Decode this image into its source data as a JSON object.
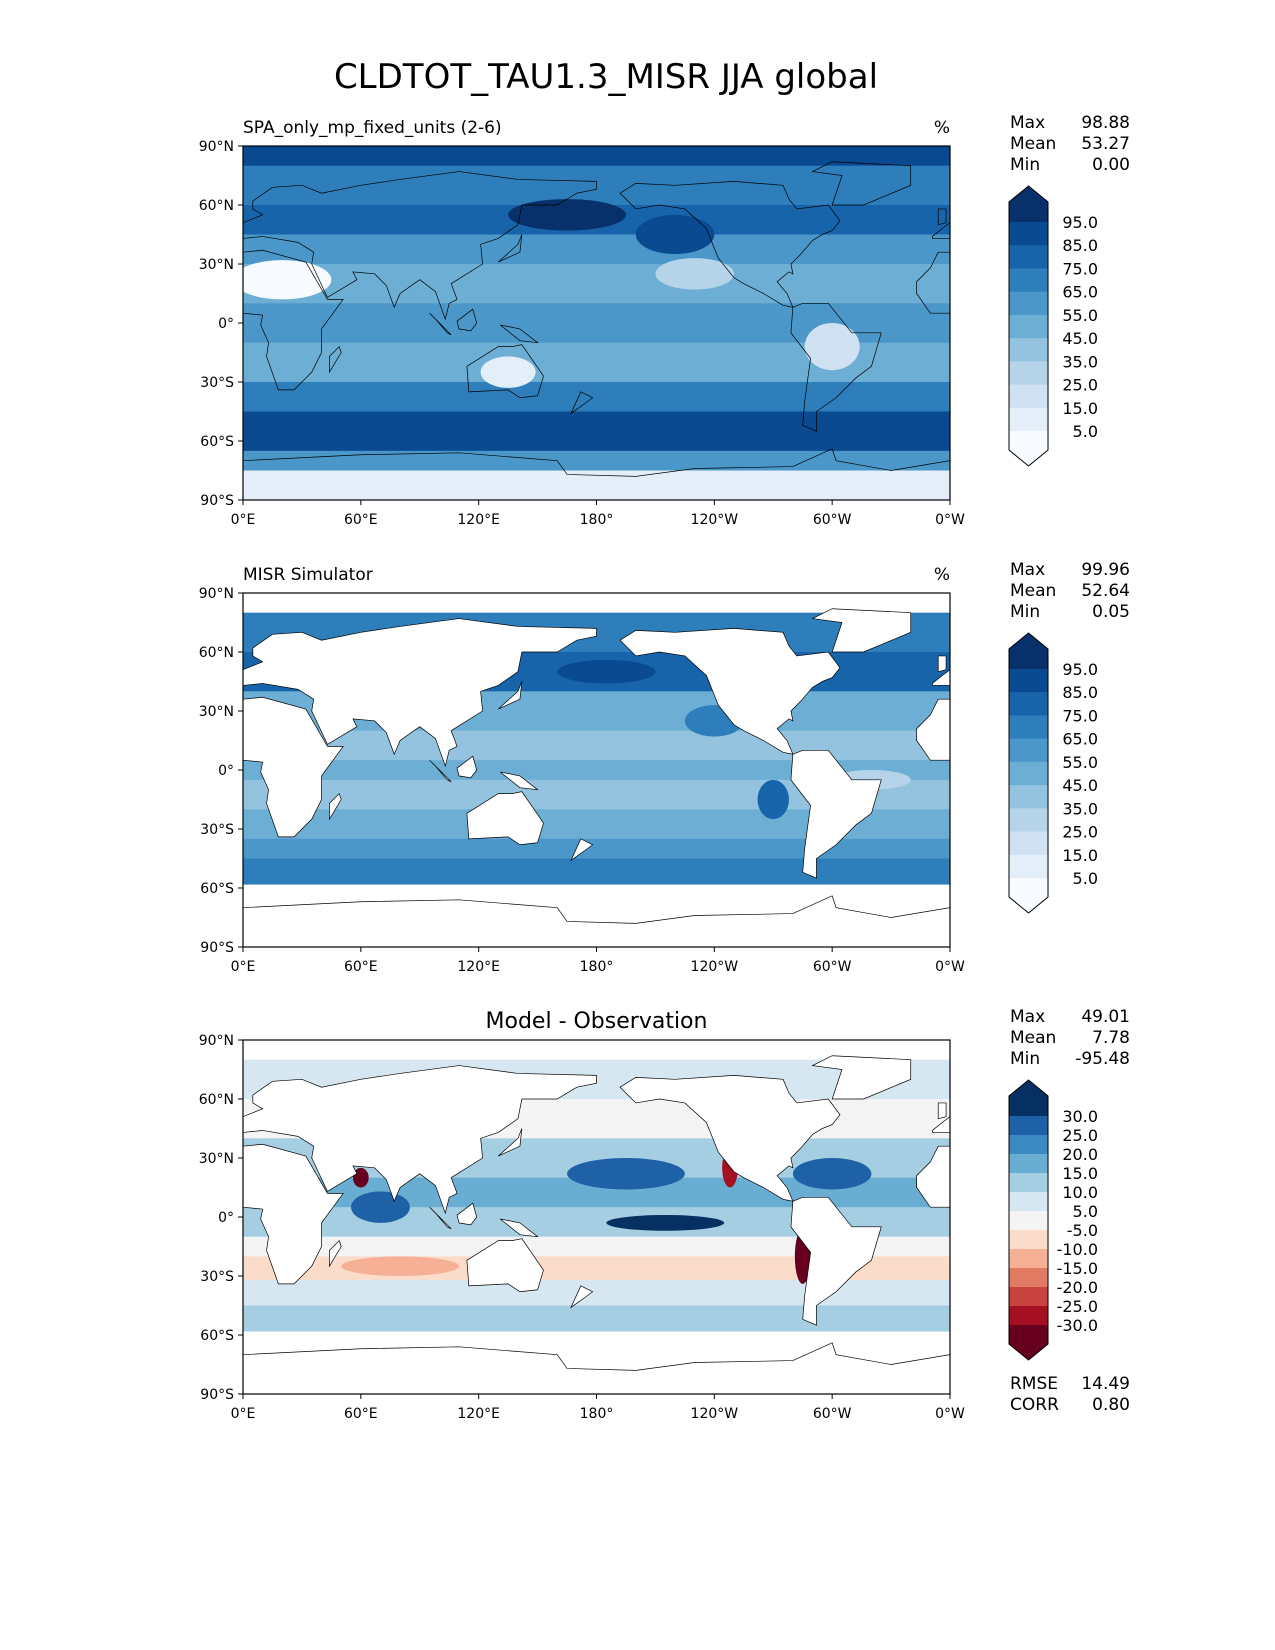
{
  "chart_data": {
    "type": "heatmap",
    "title": "CLDTOT_TAU1.3_MISR JJA global",
    "lat_ticks": [
      "90°N",
      "60°N",
      "30°N",
      "0°",
      "30°S",
      "60°S",
      "90°S"
    ],
    "lon_ticks": [
      "0°E",
      "60°E",
      "120°E",
      "180°",
      "120°W",
      "60°W",
      "0°W"
    ],
    "panels": [
      {
        "title": "SPA_only_mp_fixed_units (2-6)",
        "units": "%",
        "stats": {
          "max_label": "Max",
          "max": "98.88",
          "mean_label": "Mean",
          "mean": "53.27",
          "min_label": "Min",
          "min": "0.00"
        },
        "colorbar_ticks": [
          "95.0",
          "85.0",
          "75.0",
          "65.0",
          "55.0",
          "45.0",
          "35.0",
          "25.0",
          "15.0",
          "5.0"
        ],
        "colors": [
          "#f7fbff",
          "#e3eef9",
          "#cfe1f2",
          "#b5d4e9",
          "#93c3df",
          "#6daed5",
          "#4b97c9",
          "#2f7ebc",
          "#1864aa",
          "#0a4a90",
          "#08306b"
        ],
        "ocean_only": false,
        "zonal_bins": [
          [
            90,
            80,
            9
          ],
          [
            80,
            60,
            7
          ],
          [
            60,
            45,
            8
          ],
          [
            45,
            30,
            6
          ],
          [
            30,
            10,
            5
          ],
          [
            10,
            -10,
            6
          ],
          [
            -10,
            -30,
            5
          ],
          [
            -30,
            -45,
            7
          ],
          [
            -45,
            -65,
            9
          ],
          [
            -65,
            -75,
            6
          ],
          [
            -75,
            -90,
            1
          ]
        ],
        "blobs": [
          [
            20,
            22,
            25,
            10,
            0
          ],
          [
            135,
            -25,
            14,
            8,
            1
          ],
          [
            300,
            -12,
            14,
            12,
            2
          ],
          [
            230,
            25,
            20,
            8,
            3
          ],
          [
            165,
            55,
            30,
            8,
            10
          ],
          [
            220,
            45,
            20,
            10,
            9
          ]
        ]
      },
      {
        "title": "MISR Simulator",
        "units": "%",
        "stats": {
          "max_label": "Max",
          "max": "99.96",
          "mean_label": "Mean",
          "mean": "52.64",
          "min_label": "Min",
          "min": "0.05"
        },
        "colorbar_ticks": [
          "95.0",
          "85.0",
          "75.0",
          "65.0",
          "55.0",
          "45.0",
          "35.0",
          "25.0",
          "15.0",
          "5.0"
        ],
        "colors": [
          "#f7fbff",
          "#e3eef9",
          "#cfe1f2",
          "#b5d4e9",
          "#93c3df",
          "#6daed5",
          "#4b97c9",
          "#2f7ebc",
          "#1864aa",
          "#0a4a90",
          "#08306b"
        ],
        "ocean_only": true,
        "zonal_bins": [
          [
            80,
            60,
            7
          ],
          [
            60,
            40,
            8
          ],
          [
            40,
            20,
            5
          ],
          [
            20,
            5,
            4
          ],
          [
            5,
            -5,
            5
          ],
          [
            -5,
            -20,
            4
          ],
          [
            -20,
            -35,
            5
          ],
          [
            -35,
            -45,
            6
          ],
          [
            -45,
            -58,
            7
          ]
        ],
        "blobs": [
          [
            185,
            50,
            25,
            6,
            9
          ],
          [
            270,
            -15,
            8,
            10,
            8
          ],
          [
            240,
            25,
            15,
            8,
            7
          ],
          [
            320,
            -5,
            20,
            5,
            3
          ]
        ]
      },
      {
        "title": "Model - Observation",
        "units": "",
        "stats": {
          "max_label": "Max",
          "max": "49.01",
          "mean_label": "Mean",
          "mean": "7.78",
          "min_label": "Min",
          "min": "-95.48"
        },
        "extra_stats": {
          "rmse_label": "RMSE",
          "rmse": "14.49",
          "corr_label": "CORR",
          "corr": "0.80"
        },
        "colorbar_ticks": [
          "30.0",
          "25.0",
          "20.0",
          "15.0",
          "10.0",
          "5.0",
          "-5.0",
          "-10.0",
          "-15.0",
          "-20.0",
          "-25.0",
          "-30.0"
        ],
        "colors": [
          "#67001f",
          "#a50f22",
          "#c8423f",
          "#e17a62",
          "#f5b096",
          "#fbdccb",
          "#f4f4f4",
          "#d6e7f1",
          "#a6cee3",
          "#6aadd2",
          "#3a89c0",
          "#1f61a6",
          "#053061"
        ],
        "ocean_only": true,
        "zonal_bins": [
          [
            80,
            60,
            7
          ],
          [
            60,
            40,
            6
          ],
          [
            40,
            20,
            8
          ],
          [
            20,
            5,
            9
          ],
          [
            5,
            -10,
            8
          ],
          [
            -10,
            -20,
            6
          ],
          [
            -20,
            -32,
            5
          ],
          [
            -32,
            -45,
            7
          ],
          [
            -45,
            -58,
            8
          ]
        ],
        "blobs": [
          [
            195,
            22,
            30,
            8,
            11
          ],
          [
            215,
            -3,
            30,
            4,
            12
          ],
          [
            300,
            22,
            20,
            8,
            11
          ],
          [
            70,
            5,
            15,
            8,
            11
          ],
          [
            80,
            -25,
            30,
            5,
            4
          ],
          [
            285,
            -20,
            4,
            14,
            0
          ],
          [
            248,
            25,
            4,
            10,
            1
          ],
          [
            60,
            20,
            4,
            5,
            0
          ]
        ]
      }
    ]
  }
}
